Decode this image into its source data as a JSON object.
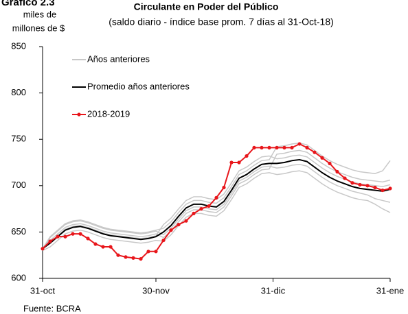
{
  "chart_data": {
    "type": "line",
    "label": "Gráfico 2.3",
    "title": "Circulante en Poder del Público",
    "subtitle": "(saldo diario - índice base prom. 7 días al 31-Oct-18)",
    "ylabel": [
      "miles de",
      "millones de $"
    ],
    "source": "Fuente: BCRA",
    "xlim": [
      0,
      92
    ],
    "xticks": [
      {
        "value": 0,
        "label": "31-oct"
      },
      {
        "value": 30,
        "label": "30-nov"
      },
      {
        "value": 61,
        "label": "31-dic"
      },
      {
        "value": 92,
        "label": "31-ene"
      }
    ],
    "ylim": [
      600,
      850
    ],
    "yticks": [
      600,
      650,
      700,
      750,
      800,
      850
    ],
    "grid": false,
    "legend": "upper left",
    "x": [
      0,
      2,
      4,
      6,
      8,
      10,
      12,
      14,
      16,
      18,
      20,
      22,
      24,
      26,
      28,
      30,
      32,
      34,
      36,
      38,
      40,
      42,
      44,
      46,
      48,
      50,
      52,
      54,
      56,
      58,
      60,
      62,
      64,
      66,
      68,
      70,
      72,
      74,
      76,
      78,
      80,
      82,
      84,
      86,
      88,
      90,
      92
    ],
    "series": [
      {
        "name": "Años anteriores",
        "color": "#c8c8c8",
        "values": [
          [
            632,
            645,
            652,
            659,
            662,
            663,
            661,
            658,
            655,
            653,
            652,
            651,
            650,
            649,
            650,
            652,
            654,
            661,
            671,
            680,
            684,
            684,
            682,
            681,
            687,
            699,
            712,
            716,
            722,
            727,
            728,
            742,
            743,
            745,
            746,
            744,
            738,
            732,
            727,
            723,
            720,
            717,
            715,
            714,
            713,
            716,
            727
          ],
          [
            631,
            641,
            648,
            655,
            658,
            659,
            657,
            654,
            651,
            649,
            648,
            647,
            646,
            645,
            646,
            648,
            644,
            651,
            661,
            670,
            674,
            674,
            672,
            671,
            677,
            689,
            702,
            706,
            712,
            717,
            718,
            734,
            735,
            737,
            738,
            736,
            730,
            724,
            719,
            715,
            712,
            709,
            707,
            706,
            705,
            704,
            706
          ],
          [
            630,
            634,
            641,
            648,
            651,
            652,
            650,
            647,
            644,
            642,
            641,
            640,
            639,
            638,
            639,
            641,
            640,
            647,
            657,
            666,
            670,
            670,
            668,
            667,
            673,
            685,
            698,
            702,
            708,
            713,
            714,
            712,
            713,
            715,
            716,
            714,
            708,
            702,
            697,
            693,
            690,
            687,
            685,
            684,
            680,
            675,
            671
          ],
          [
            633,
            639,
            646,
            653,
            656,
            657,
            655,
            652,
            649,
            647,
            646,
            645,
            644,
            643,
            644,
            646,
            658,
            665,
            675,
            684,
            688,
            688,
            686,
            685,
            691,
            703,
            716,
            720,
            726,
            731,
            732,
            729,
            730,
            732,
            733,
            731,
            725,
            719,
            714,
            710,
            707,
            704,
            702,
            701,
            700,
            699,
            701
          ],
          [
            630,
            644,
            651,
            658,
            661,
            662,
            660,
            657,
            654,
            652,
            651,
            650,
            649,
            648,
            649,
            651,
            647,
            654,
            664,
            673,
            677,
            677,
            675,
            674,
            680,
            692,
            705,
            709,
            715,
            720,
            721,
            719,
            720,
            722,
            723,
            721,
            715,
            709,
            704,
            700,
            697,
            694,
            692,
            690,
            686,
            684,
            682
          ]
        ]
      },
      {
        "name": "Promedio años anteriores",
        "color": "#000000",
        "values": [
          632,
          638,
          645,
          652,
          655,
          656,
          654,
          651,
          648,
          646,
          645,
          644,
          643,
          642,
          643,
          645,
          650,
          657,
          667,
          676,
          680,
          680,
          678,
          677,
          683,
          695,
          708,
          712,
          718,
          723,
          724,
          724,
          725,
          727,
          728,
          726,
          720,
          714,
          709,
          705,
          702,
          699,
          697,
          696,
          695,
          694,
          696
        ]
      },
      {
        "name": "2018-2019",
        "color": "#e8161b",
        "markers": true,
        "values": [
          632,
          640,
          645,
          645,
          648,
          648,
          643,
          637,
          634,
          634,
          625,
          623,
          622,
          621,
          629,
          629,
          641,
          652,
          658,
          662,
          670,
          675,
          678,
          687,
          698,
          725,
          725,
          732,
          741,
          741,
          741,
          741,
          741,
          741,
          745,
          741,
          736,
          730,
          724,
          715,
          708,
          703,
          701,
          700,
          698,
          695,
          697
        ]
      }
    ]
  }
}
